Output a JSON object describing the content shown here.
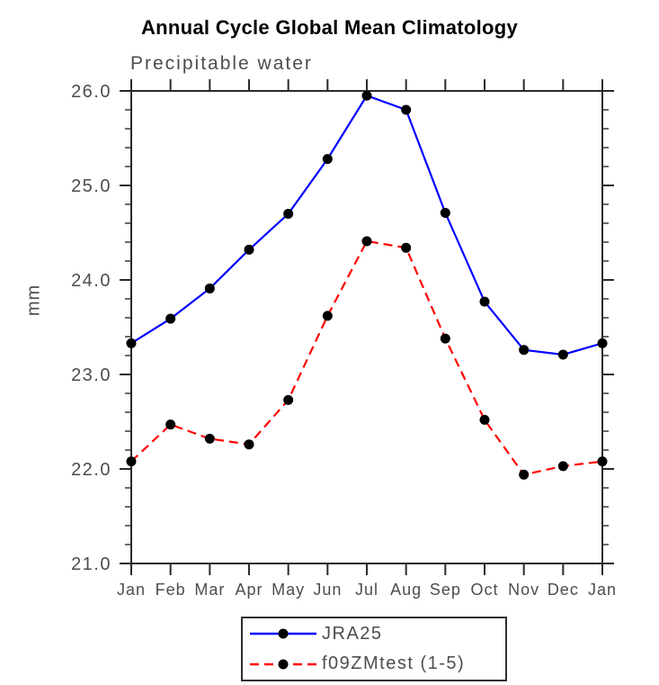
{
  "title": "Annual Cycle Global Mean Climatology",
  "subtitle": "Precipitable water",
  "ylabel": "mm",
  "colors": {
    "axis": "#2a2a2a",
    "muted_text": "#4d4d4d",
    "title_text": "#000000",
    "marker": "#000000",
    "series1": "#0000ff",
    "series2": "#ff0000"
  },
  "chart_data": {
    "type": "line",
    "x_categories": [
      "Jan",
      "Feb",
      "Mar",
      "Apr",
      "May",
      "Jun",
      "Jul",
      "Aug",
      "Sep",
      "Oct",
      "Nov",
      "Dec",
      "Jan"
    ],
    "series": [
      {
        "name": "JRA25",
        "color": "#0000ff",
        "line_style": "solid",
        "marker": "filled-circle",
        "marker_color": "#000000",
        "values": [
          23.33,
          23.59,
          23.91,
          24.32,
          24.7,
          25.28,
          25.95,
          25.8,
          24.71,
          23.77,
          23.26,
          23.21,
          23.33
        ]
      },
      {
        "name": "f09ZMtest (1-5)",
        "color": "#ff0000",
        "line_style": "dashed",
        "marker": "filled-circle",
        "marker_color": "#000000",
        "values": [
          22.08,
          22.47,
          22.32,
          22.26,
          22.73,
          23.62,
          24.41,
          24.34,
          23.38,
          22.52,
          21.94,
          22.03,
          22.08
        ]
      }
    ],
    "title": "Annual Cycle Global Mean Climatology",
    "subtitle": "Precipitable water",
    "xlabel": "",
    "ylabel": "mm",
    "ylim": [
      21.0,
      26.0
    ],
    "yticks_major": [
      21.0,
      22.0,
      23.0,
      24.0,
      25.0,
      26.0
    ],
    "ytick_labels": [
      "21.0",
      "22.0",
      "23.0",
      "24.0",
      "25.0",
      "26.0"
    ],
    "ytick_minor_step": 0.2,
    "grid": false,
    "legend_position": "bottom-center"
  }
}
